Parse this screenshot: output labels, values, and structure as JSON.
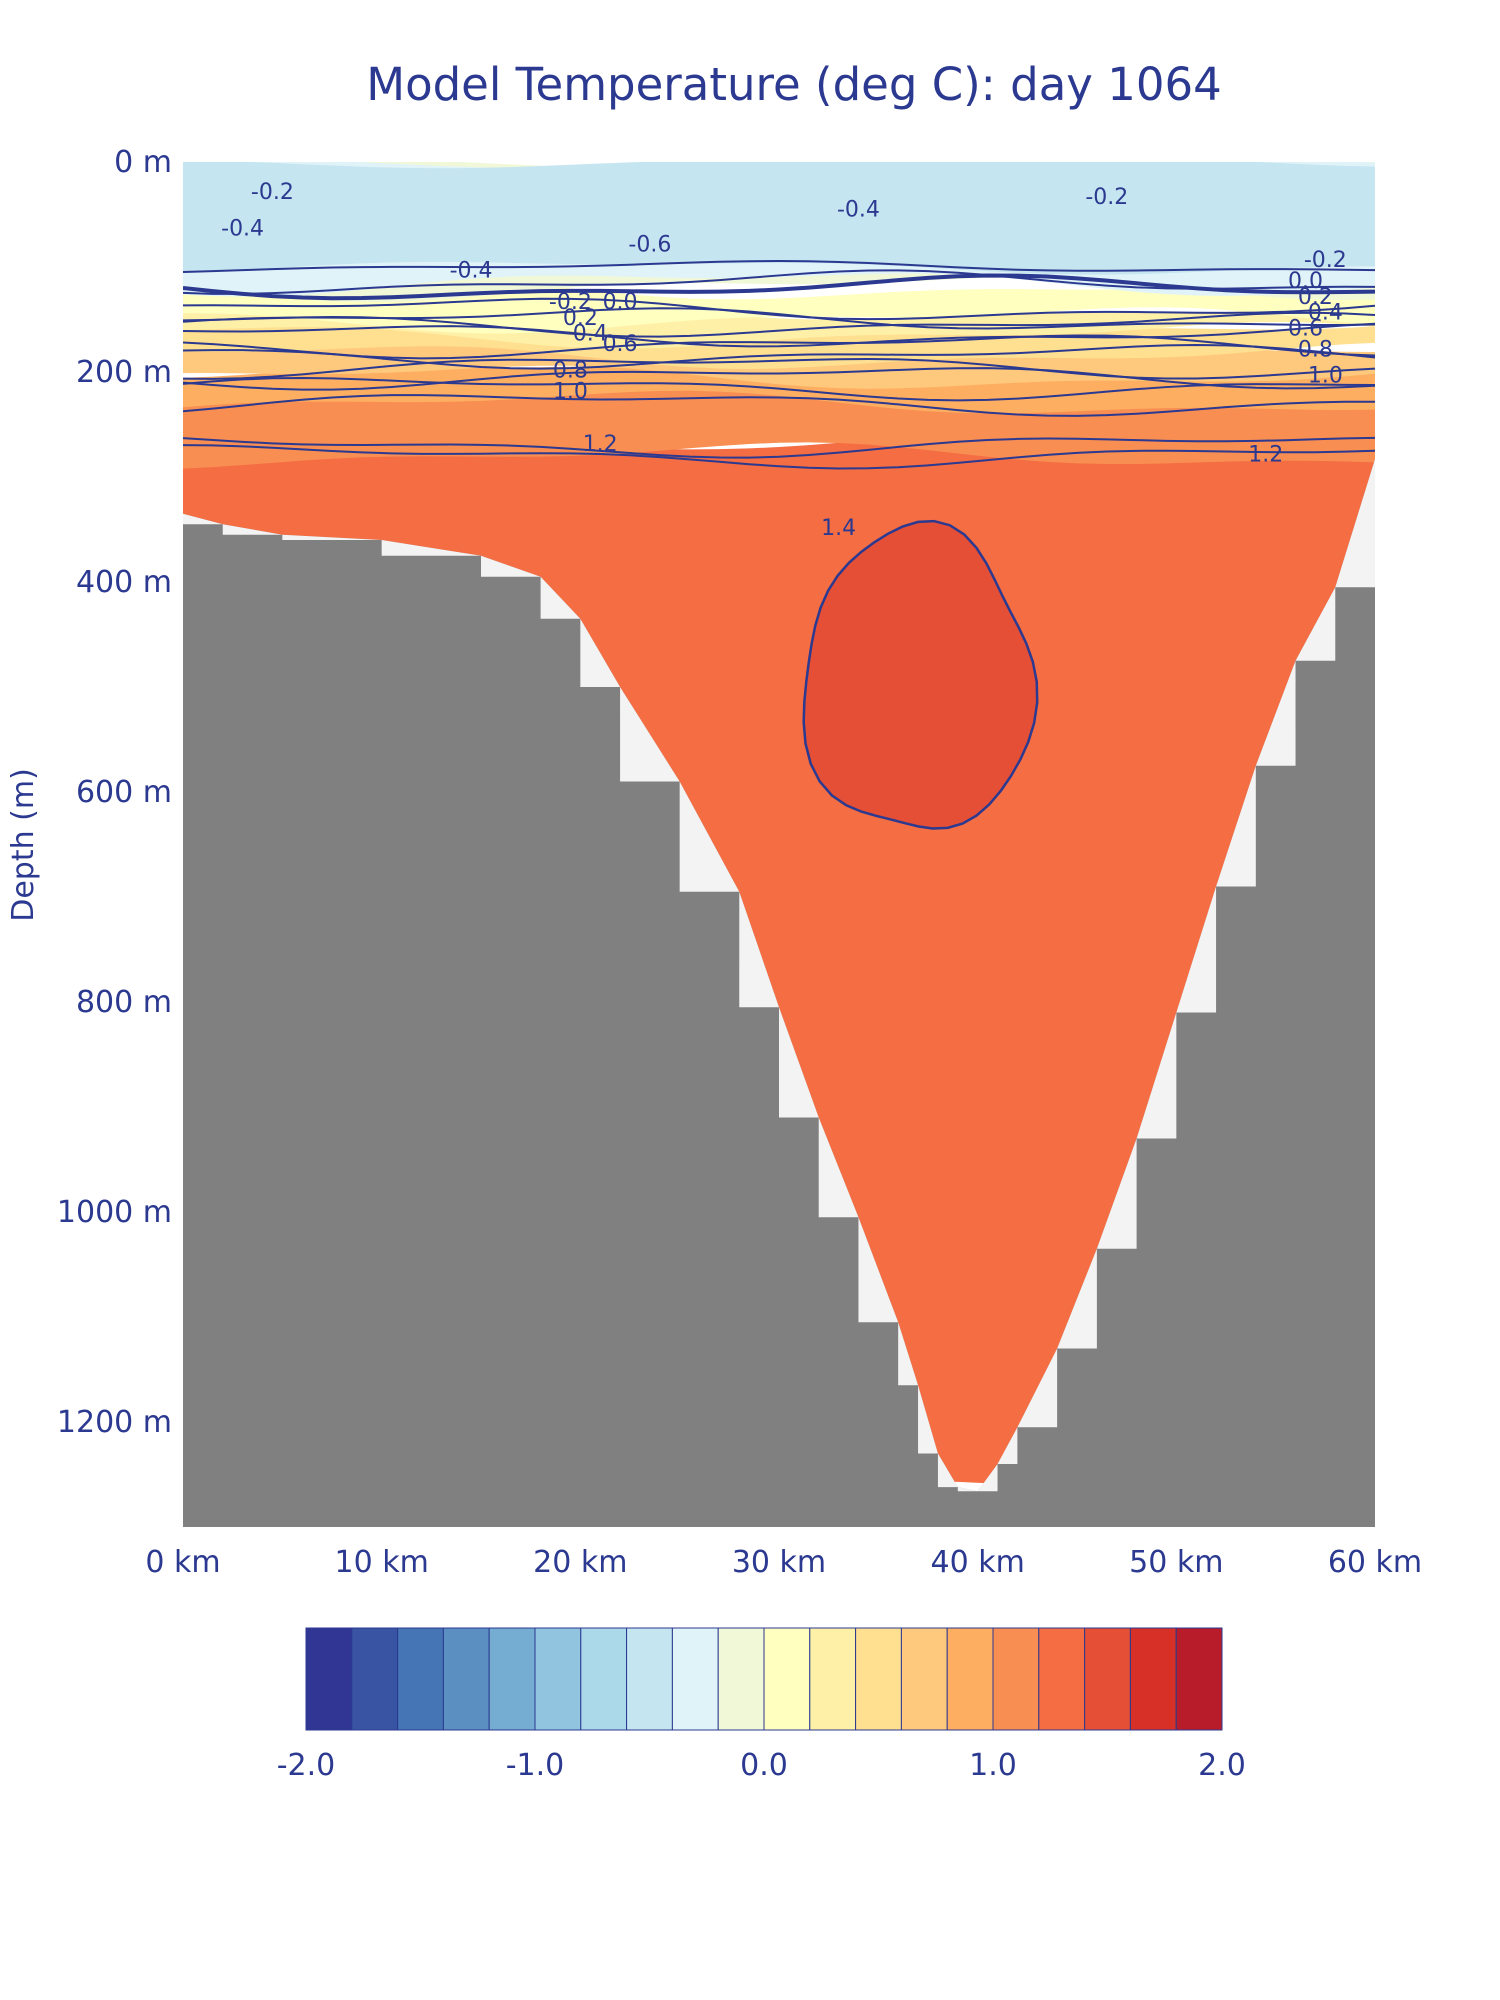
{
  "chart_data": {
    "type": "heatmap",
    "subtype": "filled-contour depth section",
    "title": "Model Temperature (deg C): day 1064",
    "xlabel": "",
    "ylabel": "Depth (m)",
    "x_unit": "km",
    "y_unit": "m",
    "xlim": [
      0,
      60
    ],
    "ylim": [
      1300,
      0
    ],
    "x_ticks": [
      0,
      10,
      20,
      30,
      40,
      50,
      60
    ],
    "x_tick_labels": [
      "0 km",
      "10 km",
      "20 km",
      "30 km",
      "40 km",
      "50 km",
      "60 km"
    ],
    "y_ticks": [
      0,
      200,
      400,
      600,
      800,
      1000,
      1200
    ],
    "y_tick_labels": [
      "0 m",
      "200 m",
      "400 m",
      "600 m",
      "800 m",
      "1000 m",
      "1200 m"
    ],
    "grid": false,
    "bathymetry": {
      "description": "seafloor (masked) profile, depth in m vs distance in km",
      "color": "#808080",
      "x": [
        0,
        2,
        5,
        10,
        15,
        18,
        20,
        22,
        25,
        28,
        30,
        32,
        34,
        36,
        37,
        38,
        39,
        40,
        41,
        42,
        44,
        46,
        48,
        50,
        52,
        54,
        56,
        58,
        60
      ],
      "depth": [
        335,
        345,
        355,
        360,
        375,
        395,
        435,
        500,
        590,
        695,
        805,
        910,
        1005,
        1105,
        1165,
        1230,
        1262,
        1266,
        1240,
        1205,
        1130,
        1035,
        930,
        810,
        690,
        575,
        475,
        405,
        283
      ]
    },
    "colorbar": {
      "min": -2.0,
      "max": 2.0,
      "step": 0.2,
      "tick_values": [
        -2.0,
        -1.0,
        0.0,
        1.0,
        2.0
      ],
      "tick_labels": [
        "-2.0",
        "-1.0",
        "0.0",
        "1.0",
        "2.0"
      ],
      "colors": [
        "#313695",
        "#3a54a4",
        "#4575b4",
        "#5b8fc2",
        "#74add1",
        "#91c5df",
        "#abd9e9",
        "#c5e5f0",
        "#e0f3f8",
        "#f0f8d8",
        "#ffffbf",
        "#fff0a8",
        "#fee090",
        "#fec97d",
        "#fdae61",
        "#f88e52",
        "#f46d43",
        "#e54f36",
        "#d73027",
        "#b81c2b"
      ]
    },
    "temperature_bands": [
      {
        "range": [
          -0.2,
          0.0
        ],
        "depth_top": 0,
        "depth_bottom": 120,
        "where": "surface, near left and right edges"
      },
      {
        "range": [
          -0.4,
          -0.2
        ],
        "depth_top": 0,
        "depth_bottom": 115,
        "where": "upper layer"
      },
      {
        "range": [
          -0.6,
          -0.4
        ],
        "depth_top": 0,
        "depth_bottom": 100,
        "where": "core near 22-42 km"
      },
      {
        "range": [
          0.0,
          0.2
        ],
        "depth_top": 120,
        "depth_bottom": 150
      },
      {
        "range": [
          0.2,
          0.4
        ],
        "depth_top": 140,
        "depth_bottom": 165
      },
      {
        "range": [
          0.4,
          0.6
        ],
        "depth_top": 155,
        "depth_bottom": 185
      },
      {
        "range": [
          0.6,
          0.8
        ],
        "depth_top": 175,
        "depth_bottom": 205
      },
      {
        "range": [
          0.8,
          1.0
        ],
        "depth_top": 195,
        "depth_bottom": 230
      },
      {
        "range": [
          1.0,
          1.2
        ],
        "depth_top": 215,
        "depth_bottom": 280
      },
      {
        "range": [
          1.2,
          1.4
        ],
        "depth_top": 270,
        "depth_bottom": 1270
      },
      {
        "range": [
          1.4,
          1.6
        ],
        "depth_top": 350,
        "depth_bottom": 640,
        "where": "warm core near 31-43 km"
      }
    ],
    "contour_labels": [
      {
        "value": "-0.2",
        "x": 4.5,
        "depth": 35
      },
      {
        "value": "-0.4",
        "x": 3.0,
        "depth": 70
      },
      {
        "value": "-0.6",
        "x": 23.5,
        "depth": 85
      },
      {
        "value": "-0.4",
        "x": 14.5,
        "depth": 110
      },
      {
        "value": "-0.4",
        "x": 34.0,
        "depth": 52
      },
      {
        "value": "-0.2",
        "x": 46.5,
        "depth": 40
      },
      {
        "value": "-0.2",
        "x": 19.5,
        "depth": 140
      },
      {
        "value": "0.0",
        "x": 22.0,
        "depth": 140
      },
      {
        "value": "0.2",
        "x": 20.0,
        "depth": 155
      },
      {
        "value": "0.4",
        "x": 20.5,
        "depth": 170
      },
      {
        "value": "0.6",
        "x": 22.0,
        "depth": 180
      },
      {
        "value": "0.8",
        "x": 19.5,
        "depth": 205
      },
      {
        "value": "1.0",
        "x": 19.5,
        "depth": 225
      },
      {
        "value": "1.2",
        "x": 21.0,
        "depth": 275
      },
      {
        "value": "1.2",
        "x": 54.5,
        "depth": 285
      },
      {
        "value": "1.4",
        "x": 33.0,
        "depth": 355
      },
      {
        "value": "-0.2",
        "x": 57.5,
        "depth": 100
      },
      {
        "value": "0.0",
        "x": 56.5,
        "depth": 120
      },
      {
        "value": "0.2",
        "x": 57.0,
        "depth": 135
      },
      {
        "value": "0.4",
        "x": 57.5,
        "depth": 150
      },
      {
        "value": "0.6",
        "x": 56.5,
        "depth": 165
      },
      {
        "value": "0.8",
        "x": 57.0,
        "depth": 185
      },
      {
        "value": "1.0",
        "x": 57.5,
        "depth": 210
      }
    ]
  }
}
